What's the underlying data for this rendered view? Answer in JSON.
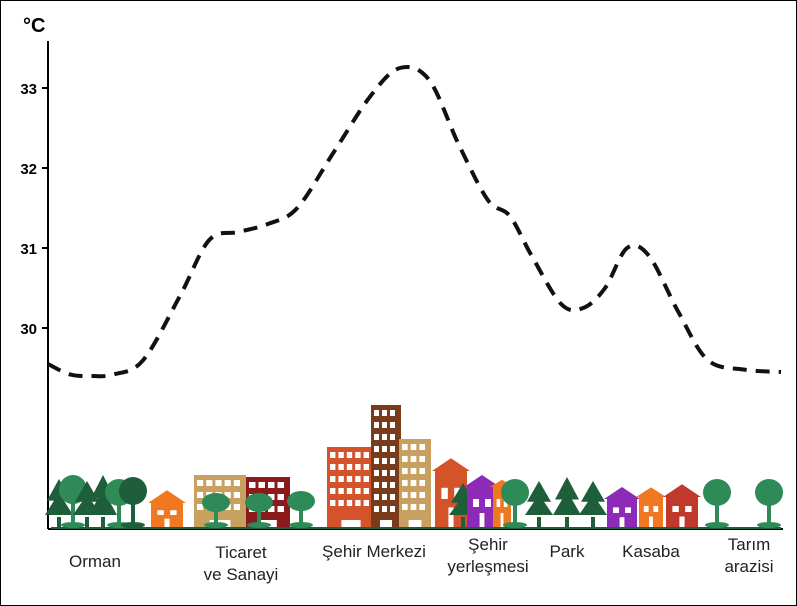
{
  "chart_data": {
    "type": "line",
    "title": "",
    "ylabel": "°C",
    "xlabel": "",
    "yticks": [
      30,
      31,
      32,
      33
    ],
    "ylim": [
      28.5,
      33.5
    ],
    "grid": false,
    "line_style": "dashed",
    "line_color": "#111111",
    "categories": [
      {
        "line1": "Orman",
        "line2": ""
      },
      {
        "line1": "Ticaret",
        "line2": "ve Sanayi"
      },
      {
        "line1": "Şehir Merkezi",
        "line2": ""
      },
      {
        "line1": "Şehir",
        "line2": "yerleşmesi"
      },
      {
        "line1": "Park",
        "line2": ""
      },
      {
        "line1": "Kasaba",
        "line2": ""
      },
      {
        "line1": "Tarım",
        "line2": "arazisi"
      }
    ],
    "series": [
      {
        "values": [
          29.55,
          29.42,
          29.4,
          29.42,
          29.6,
          30.4,
          31.1,
          31.2,
          31.3,
          31.5,
          32.2,
          32.9,
          33.25,
          33.1,
          32.3,
          31.6,
          31.4,
          30.9,
          30.3,
          30.25,
          30.5,
          31.0,
          30.9,
          30.2,
          29.6,
          29.48,
          29.45
        ],
        "x": [
          0.0,
          0.03,
          0.06,
          0.09,
          0.13,
          0.18,
          0.22,
          0.26,
          0.3,
          0.34,
          0.39,
          0.44,
          0.48,
          0.52,
          0.56,
          0.6,
          0.63,
          0.66,
          0.7,
          0.73,
          0.76,
          0.79,
          0.82,
          0.86,
          0.9,
          0.95,
          1.0
        ]
      }
    ]
  },
  "scene": {
    "colors": {
      "tree": "#1e5e3a",
      "tree_light": "#2e8b57",
      "house_orange": "#f07820",
      "house_red": "#c0392b",
      "house_purple": "#8e2ab8",
      "building_brick": "#d4532b",
      "building_brown": "#7a3b1a",
      "building_tan": "#c8a060",
      "building_maroon": "#8b1a1a",
      "ground": "#1e5e3a"
    }
  }
}
